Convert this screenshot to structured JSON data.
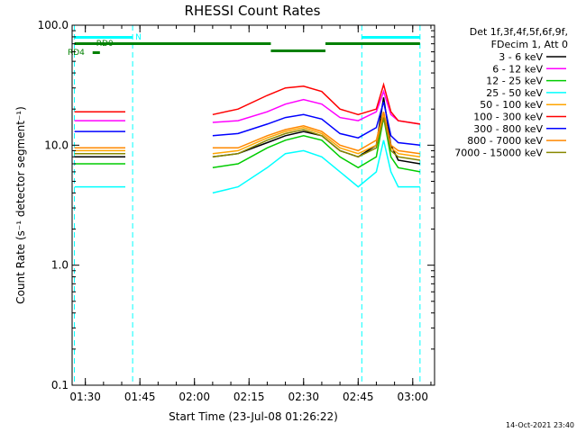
{
  "chart_data": {
    "type": "line",
    "title": "RHESSI Count Rates",
    "xlabel": "Start Time (23-Jul-08 01:26:22)",
    "ylabel": "Count Rate (s⁻¹ detector segment⁻¹)",
    "yscale": "log",
    "ylim": [
      0.1,
      100.0
    ],
    "xlim": [
      "01:26:22",
      "03:06:00"
    ],
    "y_ticks": [
      "0.1",
      "1.0",
      "10.0",
      "100.0"
    ],
    "x_ticks": [
      "01:30",
      "01:45",
      "02:00",
      "02:15",
      "02:30",
      "02:45",
      "03:00"
    ],
    "legend_header": [
      "Det 1f,3f,4f,5f,6f,9f,",
      "FDecim 1, Att 0"
    ],
    "legend_position": "right, outside plot",
    "timestamp": "14-Oct-2021 23:40",
    "x": [
      "01:27",
      "01:33",
      "01:41",
      "01:45",
      "02:05",
      "02:12",
      "02:20",
      "02:25",
      "02:30",
      "02:35",
      "02:40",
      "02:45",
      "02:50",
      "02:52",
      "02:54",
      "02:56",
      "03:02"
    ],
    "series": [
      {
        "name": "3 - 6 keV",
        "color": "#000000",
        "values": [
          8.0,
          8.0,
          8.0,
          null,
          8.0,
          8.5,
          10.5,
          12.0,
          13.0,
          12.0,
          9.0,
          8.0,
          10.0,
          25.0,
          10.0,
          7.5,
          7.0
        ]
      },
      {
        "name": "6 - 12 keV",
        "color": "#ff00ff",
        "values": [
          16.0,
          16.0,
          16.0,
          null,
          15.5,
          16.0,
          19.0,
          22.0,
          24.0,
          22.0,
          17.0,
          16.0,
          19.0,
          28.0,
          18.0,
          16.0,
          15.0
        ]
      },
      {
        "name": "12 - 25 keV",
        "color": "#00cc00",
        "values": [
          7.0,
          7.0,
          7.0,
          null,
          6.5,
          7.0,
          9.5,
          11.0,
          12.0,
          11.0,
          8.0,
          6.5,
          8.0,
          17.0,
          8.0,
          6.5,
          6.0
        ]
      },
      {
        "name": "25 - 50 keV",
        "color": "#00ffff",
        "values": [
          4.5,
          4.5,
          4.5,
          null,
          4.0,
          4.5,
          6.5,
          8.5,
          9.0,
          8.0,
          6.0,
          4.5,
          6.0,
          11.0,
          6.0,
          4.5,
          4.5
        ]
      },
      {
        "name": "50 - 100 keV",
        "color": "#ffa500",
        "values": [
          9.0,
          9.0,
          9.0,
          null,
          8.5,
          9.0,
          11.5,
          13.0,
          14.0,
          12.5,
          9.5,
          8.5,
          10.0,
          18.0,
          9.5,
          8.5,
          8.0
        ]
      },
      {
        "name": "100 - 300 keV",
        "color": "#ff0000",
        "values": [
          19.0,
          19.0,
          19.0,
          null,
          18.0,
          20.0,
          26.0,
          30.0,
          31.0,
          28.0,
          20.0,
          18.0,
          20.0,
          32.0,
          19.0,
          16.0,
          15.0
        ]
      },
      {
        "name": "300 - 800 keV",
        "color": "#0000ff",
        "values": [
          13.0,
          13.0,
          13.0,
          null,
          12.0,
          12.5,
          15.0,
          17.0,
          18.0,
          16.5,
          12.5,
          11.5,
          14.0,
          23.0,
          12.0,
          10.5,
          10.0
        ]
      },
      {
        "name": "800 - 7000 keV",
        "color": "#ff8800",
        "values": [
          9.5,
          9.5,
          9.5,
          null,
          9.5,
          9.5,
          12.0,
          13.5,
          14.5,
          13.0,
          10.0,
          9.0,
          11.0,
          19.0,
          10.0,
          9.0,
          8.5
        ]
      },
      {
        "name": "7000 - 15000 keV",
        "color": "#888800",
        "values": [
          8.5,
          8.5,
          8.5,
          null,
          8.0,
          8.5,
          11.0,
          12.5,
          13.5,
          12.0,
          9.0,
          8.0,
          9.5,
          17.0,
          9.0,
          8.0,
          7.5
        ]
      }
    ],
    "dashed_time_markers": [
      "01:27",
      "01:43",
      "02:46",
      "03:02"
    ],
    "status_bars": [
      {
        "label": "N",
        "color": "#00ffff",
        "segments": [
          [
            "01:27",
            "01:43"
          ],
          [
            "02:46",
            "03:02"
          ]
        ]
      },
      {
        "label": "RD0",
        "color": "#008000",
        "segments": [
          [
            "01:27",
            "02:21"
          ],
          [
            "02:21",
            "02:36"
          ],
          [
            "02:36",
            "03:02"
          ]
        ]
      },
      {
        "label": "RD4",
        "color": "#008000",
        "segments": [
          [
            "01:32",
            "01:34"
          ]
        ]
      }
    ]
  }
}
